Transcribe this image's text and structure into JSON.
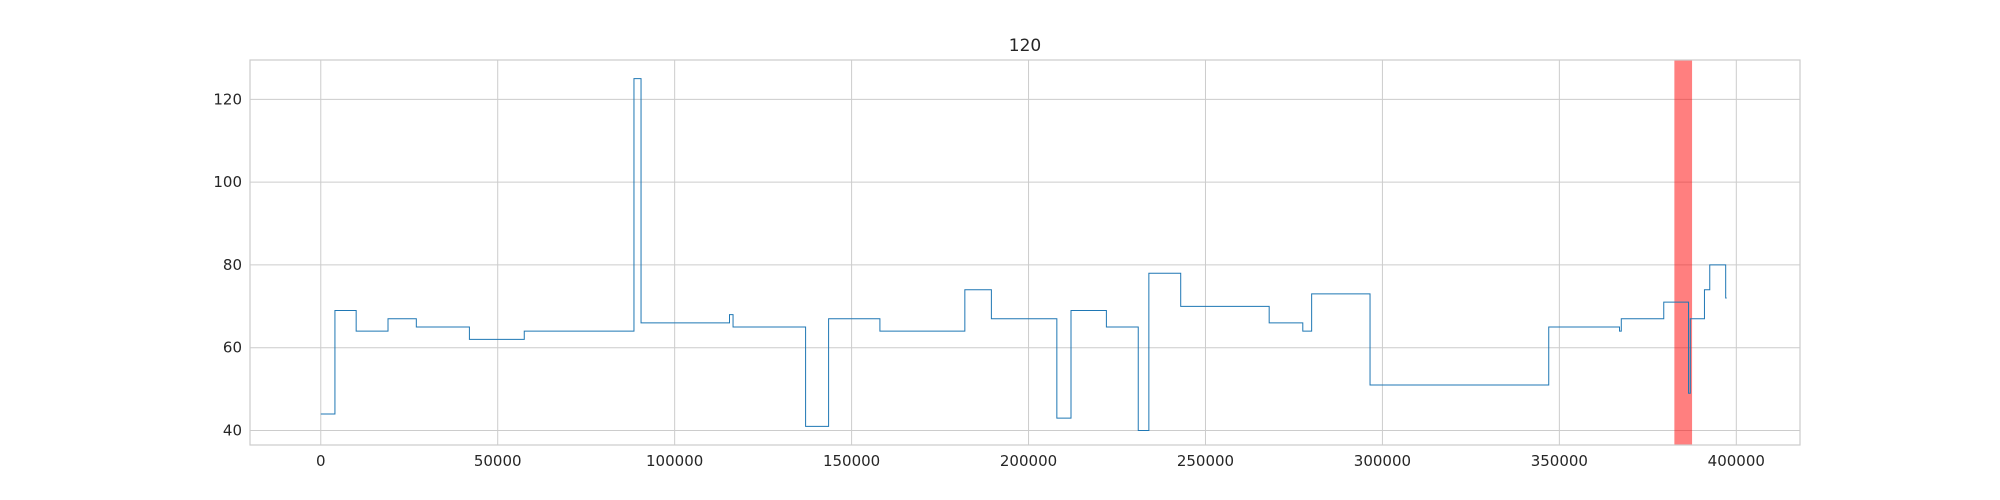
{
  "chart_data": {
    "type": "line",
    "title": "120",
    "xlabel": "",
    "ylabel": "",
    "xlim": [
      -20000,
      418000
    ],
    "ylim": [
      36.5,
      129.5
    ],
    "grid": true,
    "xticks": [
      0,
      50000,
      100000,
      150000,
      200000,
      250000,
      300000,
      350000,
      400000
    ],
    "xtick_labels": [
      "0",
      "50000",
      "100000",
      "150000",
      "200000",
      "250000",
      "300000",
      "350000",
      "400000"
    ],
    "yticks": [
      40,
      60,
      80,
      100,
      120
    ],
    "ytick_labels": [
      "40",
      "60",
      "80",
      "100",
      "120"
    ],
    "highlight_span": {
      "x_start": 382500,
      "x_end": 387500,
      "color": "#ff0000",
      "opacity": 0.5
    },
    "series": [
      {
        "color": "#1f77b4",
        "step": true,
        "x": [
          0,
          4000,
          10000,
          19000,
          27000,
          42000,
          57500,
          88500,
          90500,
          115500,
          116500,
          137000,
          143500,
          158000,
          182000,
          189500,
          208000,
          212000,
          222000,
          231000,
          234000,
          243000,
          268000,
          277500,
          280000,
          296500,
          347000,
          367000,
          367500,
          379500,
          386500,
          387000,
          391000,
          392500,
          397000
        ],
        "y": [
          44,
          69,
          64,
          67,
          65,
          62,
          64,
          125,
          66,
          68,
          65,
          41,
          67,
          64,
          74,
          67,
          43,
          69,
          65,
          40,
          78,
          70,
          66,
          64,
          73,
          51,
          65,
          64,
          67,
          71,
          49,
          67,
          74,
          80,
          72
        ]
      }
    ]
  }
}
